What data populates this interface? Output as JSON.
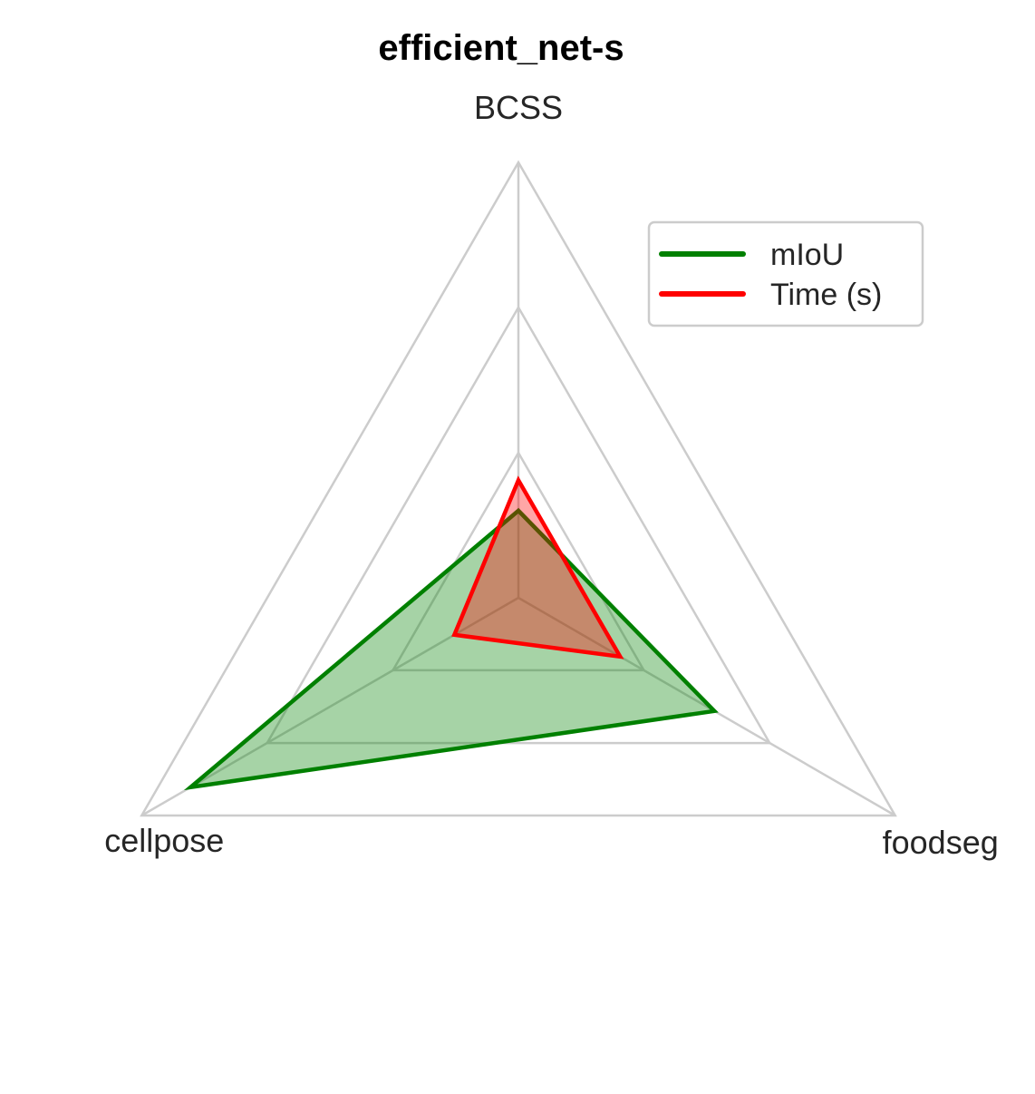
{
  "chart_data": {
    "type": "radar",
    "title": "efficient_net-s",
    "axes": [
      "BCSS",
      "cellpose",
      "foodseg"
    ],
    "rlim": [
      0,
      1
    ],
    "grid": true,
    "grid_levels": [
      0.333,
      0.667,
      1.0
    ],
    "legend_position": "top-right",
    "series": [
      {
        "name": "mIoU",
        "values": [
          0.2,
          0.87,
          0.52
        ],
        "color": "#008000",
        "fill": "#008000",
        "fill_opacity": 0.35
      },
      {
        "name": "Time (s)",
        "values": [
          0.27,
          0.17,
          0.27
        ],
        "color": "#ff0000",
        "fill": "#ff0000",
        "fill_opacity": 0.35
      }
    ]
  }
}
